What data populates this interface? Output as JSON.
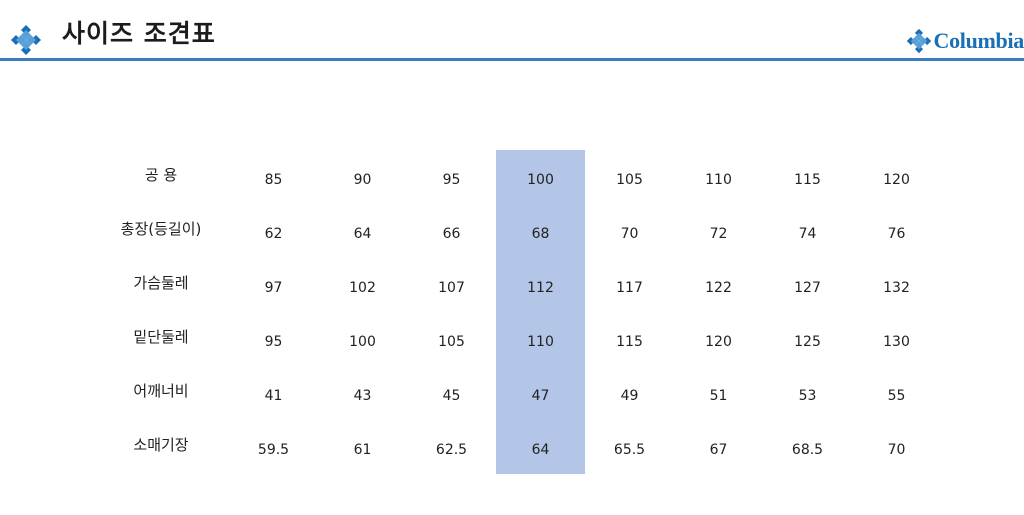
{
  "header": {
    "title": "사이즈 조견표",
    "brand": "Columbia",
    "accent_color": "#3c7cc0",
    "brand_color": "#1a6fb5",
    "left_icon": "columbia-diamond-icon"
  },
  "table": {
    "highlight_color": "#b4c6e7",
    "highlight_column_index": 3,
    "rows": [
      {
        "label": "공  용",
        "values": [
          "85",
          "90",
          "95",
          "100",
          "105",
          "110",
          "115",
          "120"
        ]
      },
      {
        "label": "총장(등길이)",
        "values": [
          "62",
          "64",
          "66",
          "68",
          "70",
          "72",
          "74",
          "76"
        ]
      },
      {
        "label": "가슴둘레",
        "values": [
          "97",
          "102",
          "107",
          "112",
          "117",
          "122",
          "127",
          "132"
        ]
      },
      {
        "label": "밑단둘레",
        "values": [
          "95",
          "100",
          "105",
          "110",
          "115",
          "120",
          "125",
          "130"
        ]
      },
      {
        "label": "어깨너비",
        "values": [
          "41",
          "43",
          "45",
          "47",
          "49",
          "51",
          "53",
          "55"
        ]
      },
      {
        "label": "소매기장",
        "values": [
          "59.5",
          "61",
          "62.5",
          "64",
          "65.5",
          "67",
          "68.5",
          "70"
        ]
      }
    ]
  }
}
